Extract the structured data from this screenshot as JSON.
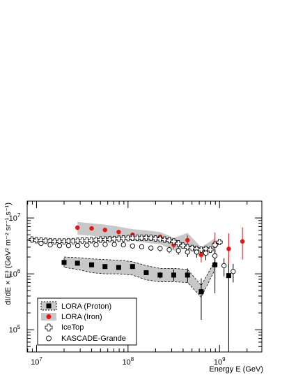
{
  "chart_data": {
    "type": "scatter",
    "xlabel": "Energy E (GeV)",
    "ylabel": "dI/dE × E³ (GeV² m⁻² sr⁻¹ s⁻¹)",
    "xscale": "log",
    "yscale": "log",
    "xlim": [
      7900000.0,
      2900000000.0
    ],
    "ylim": [
      40000.0,
      20000000.0
    ],
    "x_tick_labels": [
      {
        "value": 10000000.0,
        "base": "10",
        "exp": "7"
      },
      {
        "value": 100000000.0,
        "base": "10",
        "exp": "8"
      },
      {
        "value": 1000000000.0,
        "base": "10",
        "exp": "9"
      }
    ],
    "y_tick_labels": [
      {
        "value": 100000.0,
        "base": "10",
        "exp": "5"
      },
      {
        "value": 1000000.0,
        "base": "10",
        "exp": "6"
      },
      {
        "value": 10000000.0,
        "base": "10",
        "exp": "7"
      }
    ],
    "legend_position": "bottom-left",
    "series": [
      {
        "name": "LORA (Proton)",
        "marker": "filled-square",
        "color": "#000000",
        "band_color": "#c8c8c8",
        "band_style": "dashed",
        "x": [
          20000000.0,
          28000000.0,
          40000000.0,
          56000000.0,
          79000000.0,
          112000000.0,
          158000000.0,
          224000000.0,
          316000000.0,
          447000000.0,
          631000000.0,
          891000000.0,
          1260000000.0
        ],
        "y": [
          1600000.0,
          1550000.0,
          1450000.0,
          1350000.0,
          1300000.0,
          1350000.0,
          1050000.0,
          950000.0,
          950000.0,
          950000.0,
          480000.0,
          1450000.0,
          930000.0
        ],
        "yerr_low": [
          0,
          0,
          0,
          0,
          0,
          0,
          100000.0,
          120000.0,
          200000.0,
          250000.0,
          330000.0,
          1000000.0,
          900000.0
        ],
        "yerr_high": [
          0,
          0,
          0,
          0,
          0,
          0,
          100000.0,
          120000.0,
          250000.0,
          300000.0,
          350000.0,
          1200000.0,
          1000000.0
        ],
        "band_x": [
          20000000.0,
          28000000.0,
          40000000.0,
          56000000.0,
          79000000.0,
          112000000.0,
          158000000.0,
          224000000.0,
          316000000.0,
          447000000.0,
          631000000.0,
          891000000.0
        ],
        "band_low": [
          1300000.0,
          1200000.0,
          1050000.0,
          1000000.0,
          1000000.0,
          950000.0,
          780000.0,
          720000.0,
          720000.0,
          700000.0,
          380000.0,
          1200000.0
        ],
        "band_high": [
          2000000.0,
          1950000.0,
          1850000.0,
          1800000.0,
          1750000.0,
          1650000.0,
          1400000.0,
          1250000.0,
          1250000.0,
          1200000.0,
          620000.0,
          1700000.0
        ]
      },
      {
        "name": "LORA (Iron)",
        "marker": "filled-circle",
        "color": "#e81414",
        "band_color": "#c8c8c8",
        "x": [
          28000000.0,
          40000000.0,
          56000000.0,
          79000000.0,
          112000000.0,
          158000000.0,
          224000000.0,
          316000000.0,
          447000000.0,
          631000000.0,
          891000000.0,
          1260000000.0,
          1780000000.0
        ],
        "y": [
          6700000.0,
          6500000.0,
          6100000.0,
          5600000.0,
          5000000.0,
          4600000.0,
          4600000.0,
          3300000.0,
          4000000.0,
          2200000.0,
          3500000.0,
          2800000.0,
          3800000.0
        ],
        "yerr_low": [
          0,
          0,
          0,
          0,
          0,
          0,
          300000.0,
          500000.0,
          800000.0,
          600000.0,
          1500000.0,
          1300000.0,
          2000000.0
        ],
        "yerr_high": [
          0,
          0,
          0,
          0,
          0,
          0,
          300000.0,
          500000.0,
          900000.0,
          700000.0,
          2000000.0,
          2500000.0,
          3000000.0
        ],
        "band_x": [
          28000000.0,
          40000000.0,
          56000000.0,
          79000000.0,
          112000000.0,
          158000000.0,
          224000000.0,
          316000000.0,
          447000000.0,
          631000000.0,
          891000000.0
        ],
        "band_low": [
          5000000.0,
          4800000.0,
          4500000.0,
          4200000.0,
          3900000.0,
          3600000.0,
          3400000.0,
          2600000.0,
          3000000.0,
          1900000.0,
          2700000.0
        ],
        "band_high": [
          8500000.0,
          8000000.0,
          7600000.0,
          7000000.0,
          6300000.0,
          6000000.0,
          5600000.0,
          4400000.0,
          5400000.0,
          3000000.0,
          4300000.0
        ]
      },
      {
        "name": "IceTop",
        "marker": "open-cross",
        "color": "#000000",
        "x": [
          8900000.0,
          10000000.0,
          11200000.0,
          12600000.0,
          14100000.0,
          15800000.0,
          17800000.0,
          20000000.0,
          22400000.0,
          25100000.0,
          28200000.0,
          31600000.0,
          35500000.0,
          39800000.0,
          44700000.0,
          50100000.0,
          56200000.0,
          63100000.0,
          70800000.0,
          79400000.0,
          89100000.0,
          100000000.0,
          112000000.0,
          126000000.0,
          141000000.0,
          158000000.0,
          178000000.0,
          200000000.0,
          224000000.0,
          251000000.0,
          282000000.0,
          316000000.0,
          355000000.0,
          398000000.0,
          447000000.0,
          501000000.0,
          562000000.0,
          631000000.0,
          708000000.0,
          794000000.0,
          891000000.0,
          1000000000.0
        ],
        "y": [
          4100000.0,
          4000000.0,
          3950000.0,
          3900000.0,
          3850000.0,
          3800000.0,
          3800000.0,
          3800000.0,
          3850000.0,
          3850000.0,
          3900000.0,
          3950000.0,
          3950000.0,
          4000000.0,
          4050000.0,
          4100000.0,
          4100000.0,
          4150000.0,
          4200000.0,
          4250000.0,
          4300000.0,
          4350000.0,
          4400000.0,
          4400000.0,
          4400000.0,
          4450000.0,
          4400000.0,
          4300000.0,
          4200000.0,
          4100000.0,
          4000000.0,
          3800000.0,
          3500000.0,
          3200000.0,
          3000000.0,
          2900000.0,
          2800000.0,
          2700000.0,
          2800000.0,
          2700000.0,
          3300000.0,
          3700000.0
        ]
      },
      {
        "name": "KASCADE-Grande",
        "marker": "open-circle",
        "color": "#000000",
        "x": [
          11200000.0,
          14100000.0,
          17800000.0,
          22400000.0,
          28200000.0,
          35500000.0,
          44700000.0,
          56200000.0,
          70800000.0,
          89100000.0,
          112000000.0,
          141000000.0,
          178000000.0,
          224000000.0,
          282000000.0,
          355000000.0,
          447000000.0,
          562000000.0,
          708000000.0,
          891000000.0,
          1120000000.0,
          1410000000.0
        ],
        "y": [
          3500000.0,
          3300000.0,
          3200000.0,
          3200000.0,
          3200000.0,
          3250000.0,
          3300000.0,
          3350000.0,
          3350000.0,
          3300000.0,
          3150000.0,
          3050000.0,
          2900000.0,
          2850000.0,
          2700000.0,
          2600000.0,
          2450000.0,
          2450000.0,
          2350000.0,
          2100000.0,
          1400000.0,
          1100000.0
        ],
        "yerr_low": [
          150000.0,
          150000.0,
          150000.0,
          150000.0,
          150000.0,
          150000.0,
          200000.0,
          200000.0,
          200000.0,
          300000.0,
          300000.0,
          300000.0,
          300000.0,
          350000.0,
          350000.0,
          400000.0,
          450000.0,
          500000.0,
          600000.0,
          700000.0,
          500000.0,
          400000.0
        ],
        "yerr_high": [
          150000.0,
          150000.0,
          150000.0,
          150000.0,
          150000.0,
          150000.0,
          200000.0,
          200000.0,
          200000.0,
          300000.0,
          300000.0,
          300000.0,
          300000.0,
          350000.0,
          350000.0,
          400000.0,
          450000.0,
          500000.0,
          600000.0,
          700000.0,
          500000.0,
          400000.0
        ]
      }
    ]
  }
}
